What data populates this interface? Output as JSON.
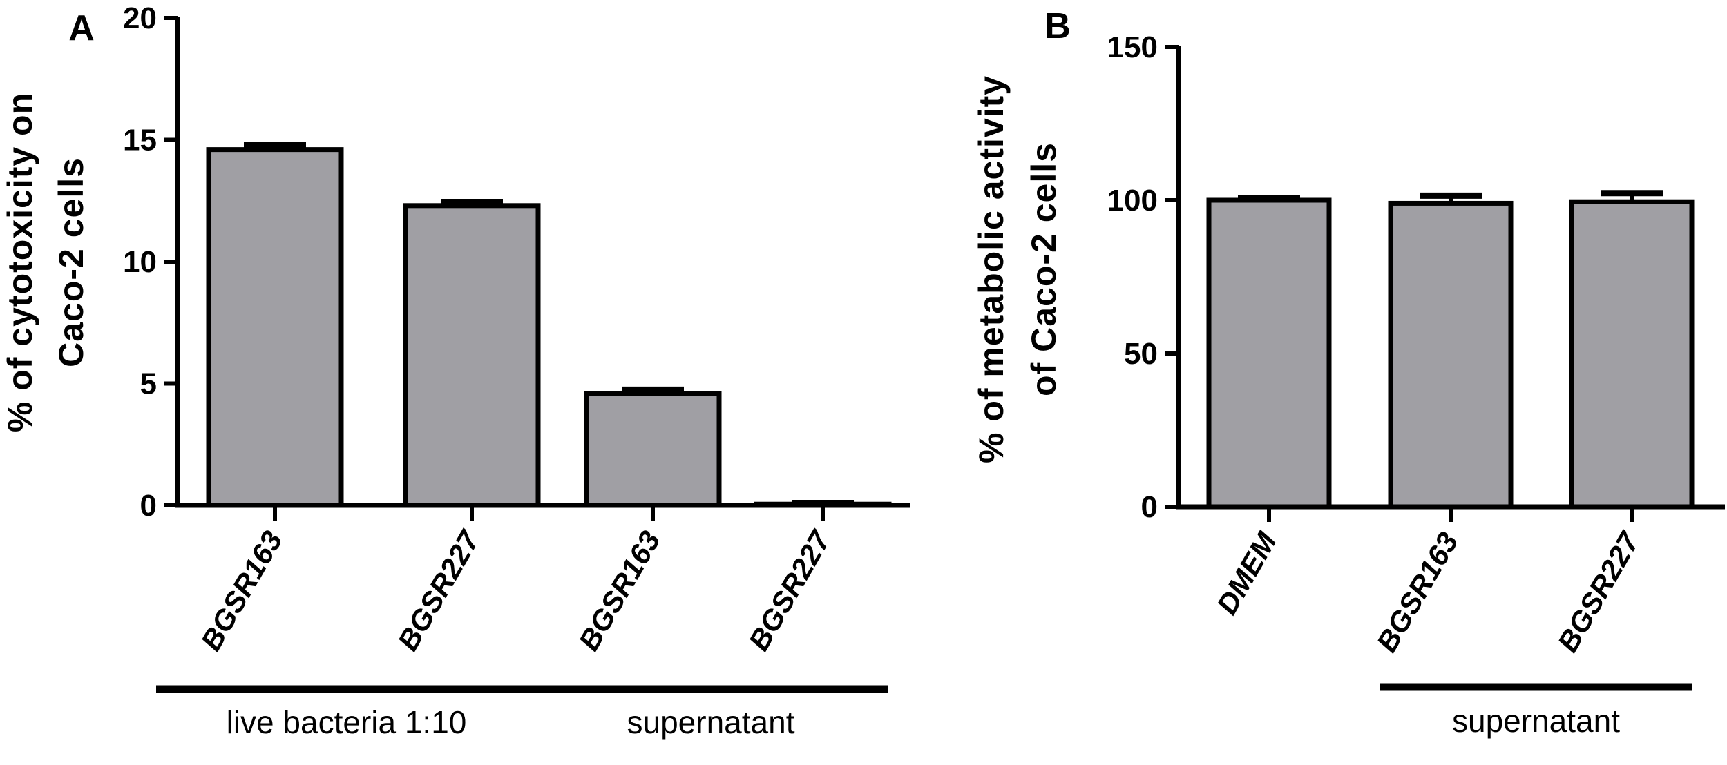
{
  "figure": {
    "panels": [
      {
        "letter": "A",
        "ylabel_lines": [
          "% of cytotoxicity on",
          "Caco-2 cells"
        ],
        "groups": [
          {
            "label": "live bacteria 1:10",
            "from": 0,
            "to": 1
          },
          {
            "label": "supernatant",
            "from": 2,
            "to": 3
          }
        ]
      },
      {
        "letter": "B",
        "ylabel_lines": [
          "% of metabolic activity",
          "of Caco-2 cells"
        ],
        "groups": [
          {
            "label": "supernatant",
            "from": 1,
            "to": 2
          }
        ]
      }
    ],
    "colors": {
      "bar_fill": "#a09fa4",
      "stroke": "#000000",
      "background": "#ffffff"
    }
  },
  "chart_data": [
    {
      "type": "bar",
      "panel": "A",
      "title": "",
      "xlabel": "",
      "ylabel": "% of cytotoxicity on Caco-2 cells",
      "categories": [
        "BGSR163",
        "BGSR227",
        "BGSR163",
        "BGSR227"
      ],
      "category_groups": [
        "live bacteria 1:10",
        "live bacteria 1:10",
        "supernatant",
        "supernatant"
      ],
      "values": [
        14.6,
        12.3,
        4.6,
        0.05
      ],
      "error": [
        0.2,
        0.15,
        0.15,
        0.05
      ],
      "ylim": [
        0,
        20
      ],
      "yticks": [
        0,
        5,
        10,
        15,
        20
      ],
      "grid": false,
      "legend": null
    },
    {
      "type": "bar",
      "panel": "B",
      "title": "",
      "xlabel": "",
      "ylabel": "% of metabolic activity of Caco-2 cells",
      "categories": [
        "DMEM",
        "BGSR163",
        "BGSR227"
      ],
      "category_groups": [
        "",
        "supernatant",
        "supernatant"
      ],
      "values": [
        100,
        99,
        99.5
      ],
      "error": [
        0.8,
        2.5,
        2.8
      ],
      "ylim": [
        0,
        150
      ],
      "yticks": [
        0,
        50,
        100,
        150
      ],
      "grid": false,
      "legend": null
    }
  ]
}
